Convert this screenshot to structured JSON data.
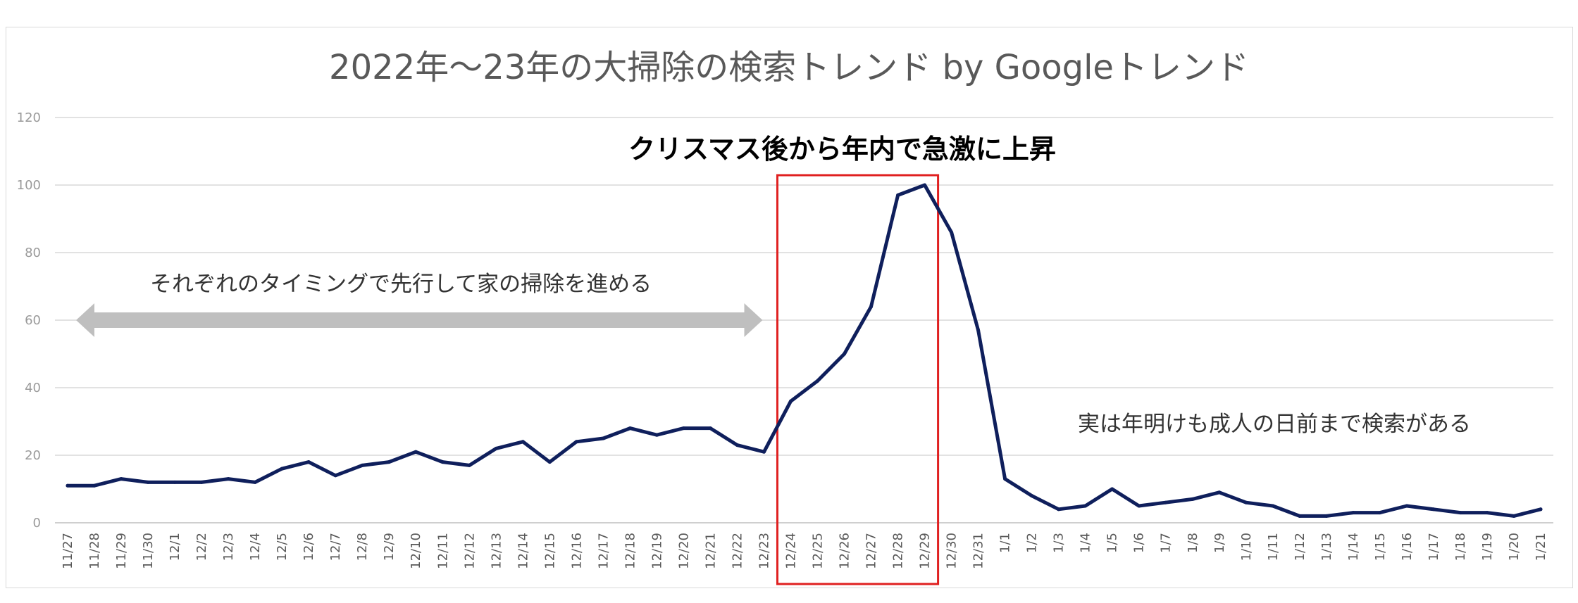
{
  "chart_data": {
    "type": "line",
    "title": "2022年〜23年の大掃除の検索トレンド by Googleトレンド",
    "xlabel": "",
    "ylabel": "",
    "ylim": [
      0,
      120
    ],
    "yticks": [
      0,
      20,
      40,
      60,
      80,
      100,
      120
    ],
    "grid": true,
    "legend": "none",
    "categories": [
      "11/27",
      "11/28",
      "11/29",
      "11/30",
      "12/1",
      "12/2",
      "12/3",
      "12/4",
      "12/5",
      "12/6",
      "12/7",
      "12/8",
      "12/9",
      "12/10",
      "12/11",
      "12/12",
      "12/13",
      "12/14",
      "12/15",
      "12/16",
      "12/17",
      "12/18",
      "12/19",
      "12/20",
      "12/21",
      "12/22",
      "12/23",
      "12/24",
      "12/25",
      "12/26",
      "12/27",
      "12/28",
      "12/29",
      "12/30",
      "12/31",
      "1/1",
      "1/2",
      "1/3",
      "1/4",
      "1/5",
      "1/6",
      "1/7",
      "1/8",
      "1/9",
      "1/10",
      "1/11",
      "1/12",
      "1/13",
      "1/14",
      "1/15",
      "1/16",
      "1/17",
      "1/18",
      "1/19",
      "1/20",
      "1/21"
    ],
    "series": [
      {
        "color": "#0f1f5c",
        "values": [
          11,
          11,
          13,
          12,
          12,
          12,
          13,
          12,
          16,
          18,
          14,
          17,
          18,
          21,
          18,
          17,
          22,
          24,
          18,
          24,
          25,
          28,
          26,
          28,
          28,
          23,
          21,
          36,
          42,
          50,
          64,
          97,
          100,
          86,
          57,
          13,
          8,
          4,
          5,
          10,
          5,
          6,
          7,
          9,
          6,
          5,
          2,
          2,
          3,
          3,
          5,
          4,
          3,
          3,
          2,
          4
        ]
      }
    ],
    "annotations": {
      "left_text": "それぞれのタイミングで先行して家の掃除を進める",
      "highlight_text": "クリスマス後から年内で急激に上昇",
      "right_text": "実は年明けも成人の日前まで検索がある",
      "arrow_color": "#bfbfbf",
      "highlight_color": "#e02020",
      "highlight_range": [
        "12/24",
        "12/29"
      ],
      "arrow_range": [
        "11/27",
        "12/23"
      ],
      "arrow_y": 60
    }
  }
}
